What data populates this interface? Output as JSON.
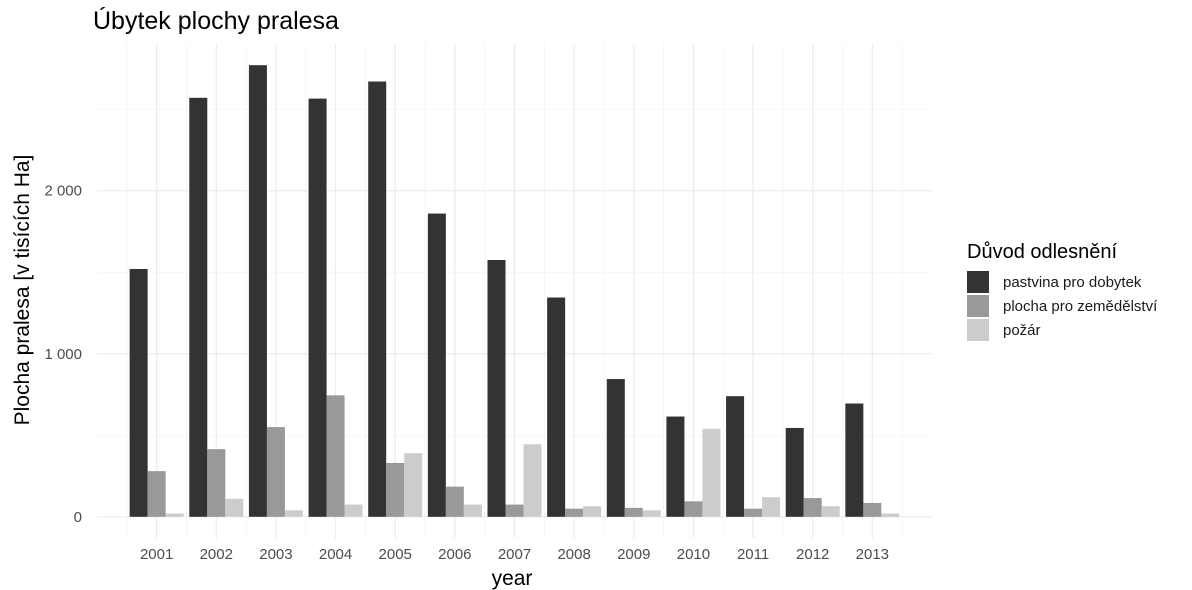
{
  "chart_data": {
    "type": "bar",
    "title": "Úbytek plochy pralesa",
    "xlabel": "year",
    "ylabel": "Plocha pralesa [v tisících Ha]",
    "categories": [
      "2001",
      "2002",
      "2003",
      "2004",
      "2005",
      "2006",
      "2007",
      "2008",
      "2009",
      "2010",
      "2011",
      "2012",
      "2013"
    ],
    "series": [
      {
        "name": "pastvina pro dobytek",
        "color": "#333333",
        "values": [
          1520,
          2570,
          2770,
          2565,
          2670,
          1860,
          1575,
          1345,
          845,
          615,
          740,
          545,
          695
        ]
      },
      {
        "name": "plocha pro zemědělství",
        "color": "#999999",
        "values": [
          280,
          415,
          550,
          745,
          330,
          185,
          75,
          50,
          55,
          95,
          50,
          115,
          85
        ]
      },
      {
        "name": "požár",
        "color": "#cccccc",
        "values": [
          20,
          110,
          40,
          75,
          390,
          75,
          445,
          65,
          40,
          540,
          120,
          65,
          20
        ]
      }
    ],
    "ylim": [
      -130,
      2900
    ],
    "yticks": [
      0,
      1000,
      2000
    ],
    "ytick_labels": [
      "0",
      "1 000",
      "2 000"
    ],
    "legend": {
      "title": "Důvod odlesnění",
      "position": "right"
    },
    "grid": true
  }
}
